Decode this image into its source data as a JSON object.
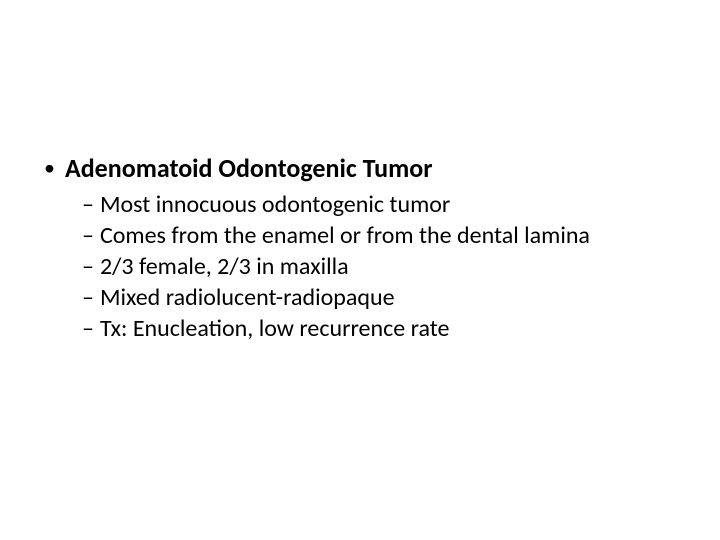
{
  "slide": {
    "background_color": "#ffffff",
    "text_color": "#000000",
    "font_family": "Calibri",
    "heading": {
      "bullet": "•",
      "text": "Adenomatoid Odontogenic Tumor",
      "fontsize": 26,
      "font_weight": 700
    },
    "subitems": [
      {
        "dash": "–",
        "text": "Most innocuous odontogenic tumor"
      },
      {
        "dash": "–",
        "text": "Comes from the enamel or from the dental lamina"
      },
      {
        "dash": "–",
        "text": "2/3 female, 2/3 in maxilla"
      },
      {
        "dash": "–",
        "text": "Mixed radiolucent-radiopaque"
      },
      {
        "dash": "–",
        "text": "Tx: Enucleation, low recurrence rate"
      }
    ],
    "sub_fontsize": 24,
    "sub_font_weight": 400
  }
}
